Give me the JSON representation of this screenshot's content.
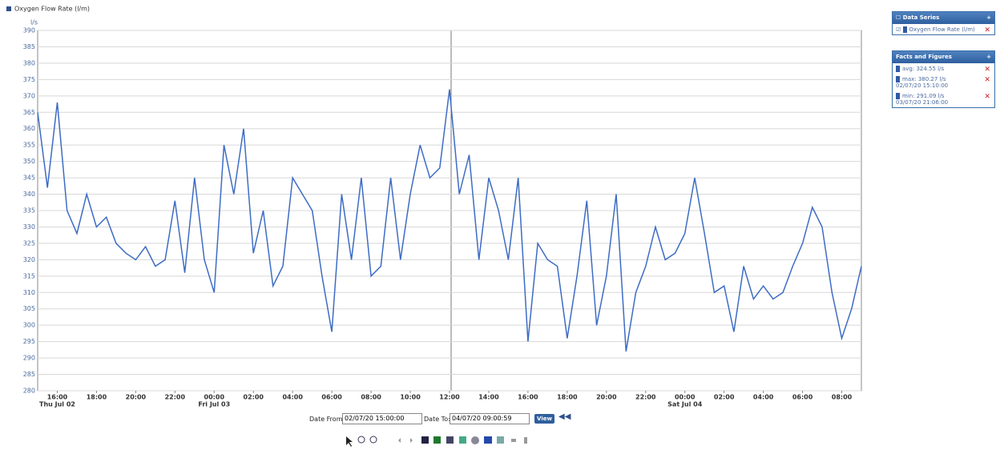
{
  "chart_data": {
    "type": "line",
    "y_label": "l/s",
    "x": [
      "Jul 02 15:00",
      "Jul 02 15:30",
      "Jul 02 16:00",
      "Jul 02 16:30",
      "Jul 02 17:00",
      "Jul 02 17:30",
      "Jul 02 18:00",
      "Jul 02 18:30",
      "Jul 02 19:00",
      "Jul 02 19:30",
      "Jul 02 20:00",
      "Jul 02 20:30",
      "Jul 02 21:00",
      "Jul 02 21:30",
      "Jul 02 22:00",
      "Jul 02 22:30",
      "Jul 02 23:00",
      "Jul 02 23:30",
      "Jul 03 00:00",
      "Jul 03 00:30",
      "Jul 03 01:00",
      "Jul 03 01:30",
      "Jul 03 02:00",
      "Jul 03 02:30",
      "Jul 03 03:00",
      "Jul 03 03:30",
      "Jul 03 04:00",
      "Jul 03 04:30",
      "Jul 03 05:00",
      "Jul 03 05:30",
      "Jul 03 06:00",
      "Jul 03 06:30",
      "Jul 03 07:00",
      "Jul 03 07:30",
      "Jul 03 08:00",
      "Jul 03 08:30",
      "Jul 03 09:00",
      "Jul 03 09:30",
      "Jul 03 10:00",
      "Jul 03 10:30",
      "Jul 03 11:00",
      "Jul 03 11:30",
      "Jul 03 12:00",
      "Jul 03 12:30",
      "Jul 03 13:00",
      "Jul 03 13:30",
      "Jul 03 14:00",
      "Jul 03 14:30",
      "Jul 03 15:00",
      "Jul 03 15:30",
      "Jul 03 16:00",
      "Jul 03 16:30",
      "Jul 03 17:00",
      "Jul 03 17:30",
      "Jul 03 18:00",
      "Jul 03 18:30",
      "Jul 03 19:00",
      "Jul 03 19:30",
      "Jul 03 20:00",
      "Jul 03 20:30",
      "Jul 03 21:00",
      "Jul 03 21:30",
      "Jul 03 22:00",
      "Jul 03 22:30",
      "Jul 03 23:00",
      "Jul 03 23:30",
      "Jul 04 00:00",
      "Jul 04 00:30",
      "Jul 04 01:00",
      "Jul 04 01:30",
      "Jul 04 02:00",
      "Jul 04 02:30",
      "Jul 04 03:00",
      "Jul 04 03:30",
      "Jul 04 04:00",
      "Jul 04 04:30",
      "Jul 04 05:00",
      "Jul 04 05:30",
      "Jul 04 06:00",
      "Jul 04 06:30",
      "Jul 04 07:00",
      "Jul 04 07:30",
      "Jul 04 08:00",
      "Jul 04 08:30",
      "Jul 04 09:00"
    ],
    "series": [
      {
        "name": "Oxygen Flow Rate (l/m)",
        "color": "#3d6cc4",
        "values": [
          365,
          342,
          368,
          335,
          328,
          340,
          330,
          333,
          325,
          322,
          320,
          324,
          318,
          320,
          338,
          316,
          345,
          320,
          310,
          355,
          340,
          360,
          322,
          335,
          312,
          318,
          345,
          340,
          335,
          315,
          298,
          340,
          320,
          345,
          315,
          318,
          345,
          320,
          340,
          355,
          345,
          348,
          372,
          340,
          352,
          320,
          345,
          335,
          320,
          345,
          295,
          325,
          320,
          318,
          296,
          315,
          338,
          300,
          315,
          340,
          292,
          310,
          318,
          330,
          320,
          322,
          328,
          345,
          328,
          310,
          312,
          298,
          318,
          308,
          312,
          308,
          310,
          318,
          325,
          336,
          330,
          310,
          296,
          305,
          318
        ]
      }
    ],
    "xlim": [
      "Jul 02 15:00",
      "Jul 04 09:00"
    ],
    "xticks": [
      {
        "value": "Jul 02 16:00",
        "label": "16:00",
        "day": "Thu Jul 02"
      },
      {
        "value": "Jul 02 18:00",
        "label": "18:00"
      },
      {
        "value": "Jul 02 20:00",
        "label": "20:00"
      },
      {
        "value": "Jul 02 22:00",
        "label": "22:00"
      },
      {
        "value": "Jul 03 00:00",
        "label": "00:00",
        "day": "Fri Jul 03"
      },
      {
        "value": "Jul 03 02:00",
        "label": "02:00"
      },
      {
        "value": "Jul 03 04:00",
        "label": "04:00"
      },
      {
        "value": "Jul 03 06:00",
        "label": "06:00"
      },
      {
        "value": "Jul 03 08:00",
        "label": "08:00"
      },
      {
        "value": "Jul 03 10:00",
        "label": "10:00"
      },
      {
        "value": "Jul 03 12:00",
        "label": "12:00"
      },
      {
        "value": "Jul 03 14:00",
        "label": "14:00"
      },
      {
        "value": "Jul 03 16:00",
        "label": "16:00"
      },
      {
        "value": "Jul 03 18:00",
        "label": "18:00"
      },
      {
        "value": "Jul 03 20:00",
        "label": "20:00"
      },
      {
        "value": "Jul 03 22:00",
        "label": "22:00"
      },
      {
        "value": "Jul 04 00:00",
        "label": "00:00",
        "day": "Sat Jul 04"
      },
      {
        "value": "Jul 04 02:00",
        "label": "02:00"
      },
      {
        "value": "Jul 04 04:00",
        "label": "04:00"
      },
      {
        "value": "Jul 04 06:00",
        "label": "06:00"
      },
      {
        "value": "Jul 04 08:00",
        "label": "08:00"
      }
    ],
    "ylim": [
      280,
      390
    ],
    "yticks": [
      280,
      285,
      290,
      295,
      300,
      305,
      310,
      315,
      320,
      325,
      330,
      335,
      340,
      345,
      350,
      355,
      360,
      365,
      370,
      375,
      380,
      385,
      390
    ],
    "grid": true
  },
  "side_panel": {
    "data_series_title": "Data Series",
    "facts_title": "Facts and Figures",
    "facts": [
      {
        "text": "avg: 324.55 l/s"
      },
      {
        "text": "max: 380.27 l/s",
        "time": "02/07/20 15:10:00"
      },
      {
        "text": "min: 291.09 l/s",
        "time": "03/07/20 21:06:00"
      }
    ]
  },
  "controls": {
    "date_from_label": "Date From:",
    "date_from": "02/07/20 15:00:00",
    "date_to_label": "Date To:",
    "date_to": "04/07/20 09:00:59",
    "view_button": "View"
  }
}
